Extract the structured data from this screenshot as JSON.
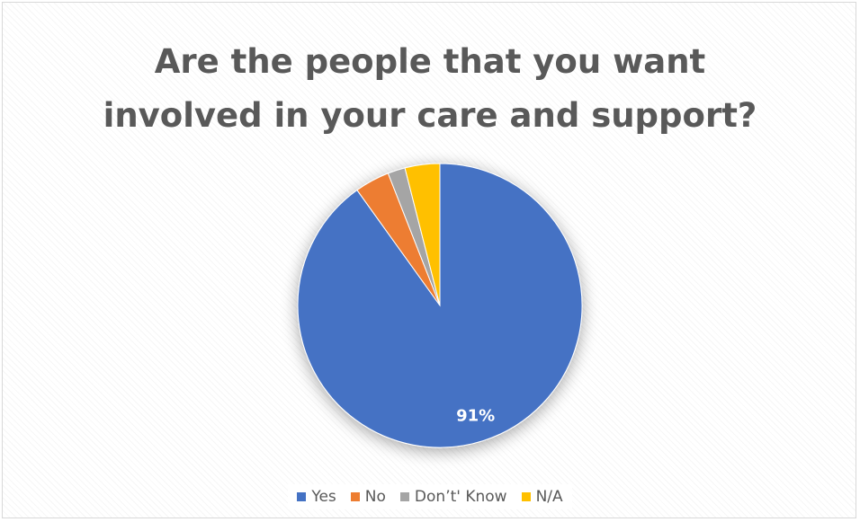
{
  "chart_data": {
    "type": "pie",
    "title": "Are the people that you want involved in your care and support?",
    "title_lines": [
      "Are the people that you want",
      "involved in your care and support?"
    ],
    "slices": [
      {
        "label": "Yes",
        "value": 91,
        "display": "91%",
        "color": "#4472C4"
      },
      {
        "label": "No",
        "value": 4,
        "display": "",
        "color": "#ED7D31"
      },
      {
        "label": "Don’t' Know",
        "value": 2,
        "display": "",
        "color": "#A5A5A5"
      },
      {
        "label": "N/A",
        "value": 4,
        "display": "",
        "color": "#FFC000"
      }
    ],
    "legend_position": "bottom"
  }
}
